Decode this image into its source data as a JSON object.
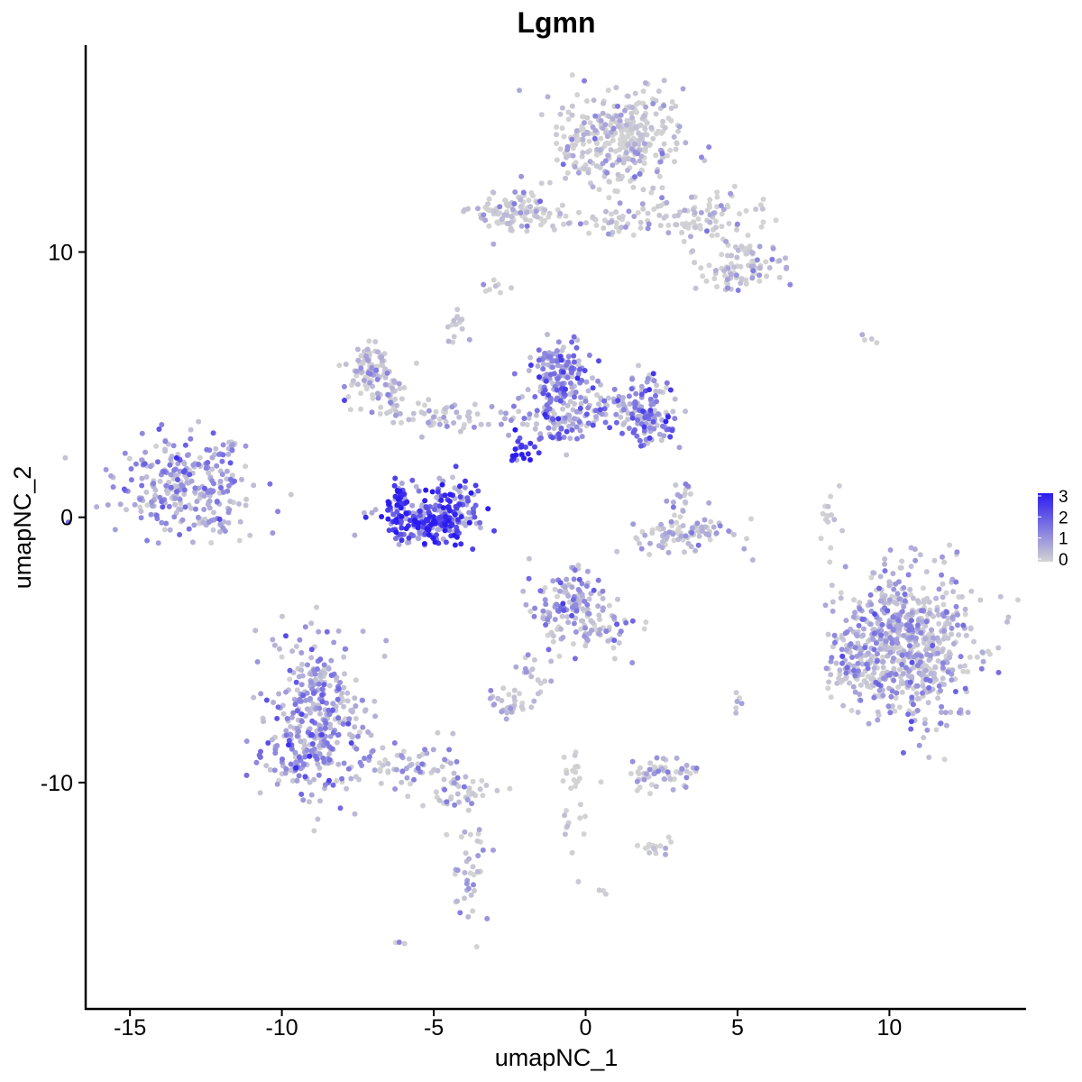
{
  "chart_data": {
    "type": "scatter",
    "title": "Lgmn",
    "xlabel": "umapNC_1",
    "ylabel": "umapNC_2",
    "xlim": [
      -16.4,
      14.5
    ],
    "ylim": [
      -18.5,
      17.8
    ],
    "x_ticks": [
      -15,
      -10,
      -5,
      0,
      5,
      10
    ],
    "x_tick_labels": [
      "-15",
      "-10",
      "-5",
      "0",
      "5",
      "10"
    ],
    "y_ticks": [
      -10,
      0,
      10
    ],
    "y_tick_labels": [
      "-10",
      "0",
      "10"
    ],
    "color_scale": {
      "low": "#d3d3d3",
      "high": "#2b1bf0",
      "range": [
        0,
        3
      ],
      "legend_ticks": [
        3,
        2,
        1,
        0
      ],
      "legend_tick_labels": [
        "3",
        "2",
        "1",
        "0"
      ],
      "legend_placement": "right"
    },
    "grid": false,
    "point_size": 3,
    "clusters": [
      {
        "id": "c1",
        "cx": -13.3,
        "cy": 1.2,
        "sx": 1.1,
        "sy": 0.9,
        "n": 260,
        "expr": 1.0
      },
      {
        "id": "c2",
        "cx": -12.1,
        "cy": 0.3,
        "sx": 0.5,
        "sy": 0.6,
        "n": 30,
        "expr": 0.9
      },
      {
        "id": "c3",
        "cx": -8.8,
        "cy": -7.3,
        "sx": 0.9,
        "sy": 1.4,
        "n": 300,
        "expr": 1.1
      },
      {
        "id": "c4",
        "cx": -9.4,
        "cy": -9.1,
        "sx": 0.6,
        "sy": 0.6,
        "n": 90,
        "expr": 1.2
      },
      {
        "id": "c5",
        "cx": -6.0,
        "cy": -9.3,
        "sx": 1.0,
        "sy": 0.5,
        "n": 70,
        "expr": 0.7
      },
      {
        "id": "c6",
        "cx": -4.2,
        "cy": -10.4,
        "sx": 0.5,
        "sy": 0.3,
        "n": 40,
        "expr": 0.4
      },
      {
        "id": "c7",
        "cx": -3.8,
        "cy": -13.0,
        "sx": 0.4,
        "sy": 1.2,
        "n": 40,
        "expr": 0.4
      },
      {
        "id": "c8",
        "cx": -5.2,
        "cy": -0.1,
        "sx": 0.8,
        "sy": 0.5,
        "n": 240,
        "expr": 2.4
      },
      {
        "id": "c9",
        "cx": -6.2,
        "cy": 0.7,
        "sx": 0.2,
        "sy": 0.4,
        "n": 30,
        "expr": 2.9
      },
      {
        "id": "c10",
        "cx": -4.2,
        "cy": 0.6,
        "sx": 0.4,
        "sy": 0.5,
        "n": 50,
        "expr": 2.3
      },
      {
        "id": "c11",
        "cx": -7.1,
        "cy": 5.4,
        "sx": 0.4,
        "sy": 0.5,
        "n": 90,
        "expr": 0.4
      },
      {
        "id": "c12",
        "cx": -6.5,
        "cy": 4.7,
        "sx": 0.3,
        "sy": 0.4,
        "n": 30,
        "expr": 0.5
      },
      {
        "id": "c13",
        "cx": -4.5,
        "cy": 3.8,
        "sx": 1.0,
        "sy": 0.3,
        "n": 60,
        "expr": 0.4
      },
      {
        "id": "c14",
        "cx": -4.3,
        "cy": 7.2,
        "sx": 0.2,
        "sy": 0.3,
        "n": 15,
        "expr": 0.4
      },
      {
        "id": "c15",
        "cx": -2.2,
        "cy": 2.6,
        "sx": 0.2,
        "sy": 0.3,
        "n": 20,
        "expr": 2.8
      },
      {
        "id": "c16",
        "cx": -0.8,
        "cy": 5.2,
        "sx": 0.5,
        "sy": 0.8,
        "n": 160,
        "expr": 1.5
      },
      {
        "id": "c17",
        "cx": -1.0,
        "cy": 3.6,
        "sx": 0.6,
        "sy": 0.4,
        "n": 70,
        "expr": 1.5
      },
      {
        "id": "c18",
        "cx": 0.8,
        "cy": 4.1,
        "sx": 1.0,
        "sy": 0.4,
        "n": 70,
        "expr": 1.2
      },
      {
        "id": "c19",
        "cx": 2.1,
        "cy": 4.0,
        "sx": 0.5,
        "sy": 0.6,
        "n": 120,
        "expr": 1.4
      },
      {
        "id": "c20",
        "cx": 3.2,
        "cy": -0.7,
        "sx": 0.9,
        "sy": 0.3,
        "n": 90,
        "expr": 0.3
      },
      {
        "id": "c21",
        "cx": 3.2,
        "cy": 0.9,
        "sx": 0.2,
        "sy": 0.4,
        "n": 20,
        "expr": 0.7
      },
      {
        "id": "c22",
        "cx": -0.6,
        "cy": -3.4,
        "sx": 0.6,
        "sy": 0.8,
        "n": 130,
        "expr": 0.9
      },
      {
        "id": "c23",
        "cx": 0.7,
        "cy": -4.2,
        "sx": 0.5,
        "sy": 0.5,
        "n": 40,
        "expr": 0.6
      },
      {
        "id": "c24",
        "cx": -1.6,
        "cy": -5.6,
        "sx": 0.3,
        "sy": 0.6,
        "n": 20,
        "expr": 0.6
      },
      {
        "id": "c25",
        "cx": -2.5,
        "cy": -7.0,
        "sx": 0.4,
        "sy": 0.3,
        "n": 30,
        "expr": 0.5
      },
      {
        "id": "c26",
        "cx": 2.5,
        "cy": -9.6,
        "sx": 0.6,
        "sy": 0.3,
        "n": 60,
        "expr": 0.3
      },
      {
        "id": "c27",
        "cx": 2.3,
        "cy": -12.4,
        "sx": 0.3,
        "sy": 0.2,
        "n": 15,
        "expr": 0.3
      },
      {
        "id": "c28",
        "cx": -0.3,
        "cy": -10.8,
        "sx": 0.3,
        "sy": 1.0,
        "n": 30,
        "expr": 0.1
      },
      {
        "id": "c29",
        "cx": 1.2,
        "cy": 14.2,
        "sx": 1.0,
        "sy": 0.9,
        "n": 350,
        "expr": 0.2
      },
      {
        "id": "c30",
        "cx": -2.4,
        "cy": 11.5,
        "sx": 0.6,
        "sy": 0.4,
        "n": 100,
        "expr": 0.15
      },
      {
        "id": "c31",
        "cx": 0.5,
        "cy": 11.2,
        "sx": 1.5,
        "sy": 0.3,
        "n": 60,
        "expr": 0.1
      },
      {
        "id": "c32",
        "cx": 3.4,
        "cy": 11.3,
        "sx": 1.4,
        "sy": 0.6,
        "n": 90,
        "expr": 0.2
      },
      {
        "id": "c33",
        "cx": 5.3,
        "cy": 9.6,
        "sx": 0.6,
        "sy": 0.4,
        "n": 60,
        "expr": 0.1
      },
      {
        "id": "c34",
        "cx": 4.6,
        "cy": 9.0,
        "sx": 0.5,
        "sy": 0.3,
        "n": 30,
        "expr": 0.1
      },
      {
        "id": "c35",
        "cx": 10.6,
        "cy": -4.8,
        "sx": 1.1,
        "sy": 1.4,
        "n": 650,
        "expr": 0.7
      },
      {
        "id": "c36",
        "cx": 8.8,
        "cy": -5.5,
        "sx": 0.4,
        "sy": 0.6,
        "n": 70,
        "expr": 0.8
      },
      {
        "id": "c37",
        "cx": 8.0,
        "cy": -0.3,
        "sx": 0.2,
        "sy": 0.8,
        "n": 15,
        "expr": 0.1
      },
      {
        "id": "c38",
        "cx": 5.0,
        "cy": -7.3,
        "sx": 0.1,
        "sy": 0.3,
        "n": 6,
        "expr": 0.2
      },
      {
        "id": "c39",
        "cx": -2.9,
        "cy": 8.6,
        "sx": 0.2,
        "sy": 0.2,
        "n": 8,
        "expr": 0.3
      },
      {
        "id": "c40",
        "cx": 9.5,
        "cy": 6.7,
        "sx": 0.3,
        "sy": 0.1,
        "n": 4,
        "expr": 0.0
      },
      {
        "id": "c41",
        "cx": -6.0,
        "cy": -16.1,
        "sx": 0.1,
        "sy": 0.1,
        "n": 3,
        "expr": 0.5
      },
      {
        "id": "c42",
        "cx": -11.5,
        "cy": 2.7,
        "sx": 0.2,
        "sy": 0.2,
        "n": 6,
        "expr": 0.6
      },
      {
        "id": "c43",
        "cx": 0.6,
        "cy": -14.2,
        "sx": 0.1,
        "sy": 0.1,
        "n": 3,
        "expr": 0.1
      }
    ]
  }
}
